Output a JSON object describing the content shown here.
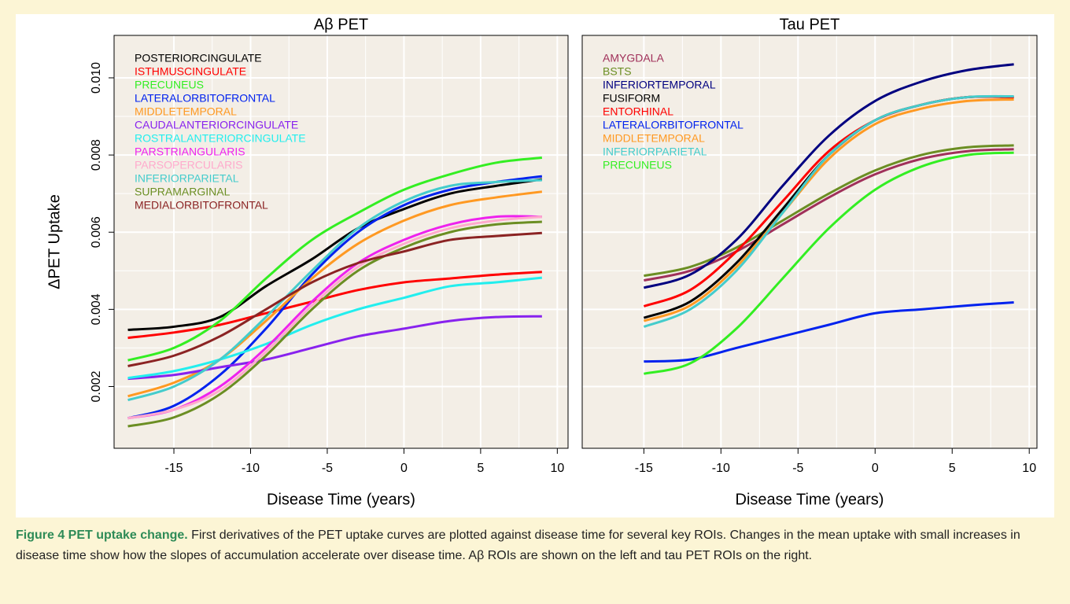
{
  "chart_data": [
    {
      "type": "line",
      "title": "Aβ PET",
      "xlabel": "Disease Time (years)",
      "ylabel": "ΔPET Uptake",
      "x": [
        -18,
        -15,
        -12,
        -9,
        -6,
        -3,
        0,
        3,
        6,
        9
      ],
      "xlim": [
        -18.9,
        10.7
      ],
      "xticks": [
        -15,
        -10,
        -5,
        0,
        5,
        10
      ],
      "ylim": [
        0.0004,
        0.0111
      ],
      "yticks": [
        0.002,
        0.004,
        0.006,
        0.008,
        {
          "value": 0.01,
          "label": "0.010"
        }
      ],
      "show_ytick_labels": true,
      "grid": true,
      "legend": "top-left",
      "series": [
        {
          "name": "POSTERIORCINGULATE",
          "color": "#000000",
          "values": [
            0.00347,
            0.00355,
            0.0038,
            0.0046,
            0.0053,
            0.0061,
            0.0066,
            0.007,
            0.0072,
            0.00737
          ]
        },
        {
          "name": "ISTHMUSCINGULATE",
          "color": "#ff0000",
          "values": [
            0.00326,
            0.0034,
            0.0036,
            0.0039,
            0.0042,
            0.0045,
            0.0047,
            0.0048,
            0.0049,
            0.00497
          ]
        },
        {
          "name": "PRECUNEUS",
          "color": "#33ee22",
          "values": [
            0.00268,
            0.003,
            0.0037,
            0.0048,
            0.0058,
            0.0065,
            0.0071,
            0.0075,
            0.0078,
            0.00793
          ]
        },
        {
          "name": "LATERALORBITOFRONTAL",
          "color": "#0022ee",
          "values": [
            0.00118,
            0.0015,
            0.0023,
            0.0035,
            0.0049,
            0.006,
            0.0067,
            0.0071,
            0.0073,
            0.00745
          ]
        },
        {
          "name": "MIDDLETEMPORAL",
          "color": "#ff9922",
          "values": [
            0.00175,
            0.0021,
            0.0027,
            0.0037,
            0.0048,
            0.0057,
            0.0063,
            0.0067,
            0.0069,
            0.00705
          ]
        },
        {
          "name": "CAUDALANTERIORCINGULATE",
          "color": "#8822ee",
          "values": [
            0.0022,
            0.0023,
            0.0025,
            0.0027,
            0.003,
            0.0033,
            0.0035,
            0.0037,
            0.0038,
            0.00382
          ]
        },
        {
          "name": "ROSTRALANTERIORCINGULATE",
          "color": "#22eeee",
          "values": [
            0.00222,
            0.0024,
            0.0027,
            0.0031,
            0.0036,
            0.004,
            0.0043,
            0.0046,
            0.0047,
            0.00482
          ]
        },
        {
          "name": "PARSTRIANGULARIS",
          "color": "#ee22ee",
          "values": [
            0.00118,
            0.0014,
            0.002,
            0.003,
            0.0042,
            0.0052,
            0.0058,
            0.0062,
            0.0064,
            0.0064
          ]
        },
        {
          "name": "PARSOPERCULARIS",
          "color": "#ffaacc",
          "values": [
            0.00118,
            0.0014,
            0.0019,
            0.0029,
            0.0041,
            0.0051,
            0.0057,
            0.0061,
            0.0063,
            0.0064
          ]
        },
        {
          "name": "INFERIORPARIETAL",
          "color": "#44cccc",
          "values": [
            0.00165,
            0.002,
            0.0027,
            0.0038,
            0.005,
            0.0061,
            0.0068,
            0.0072,
            0.0073,
            0.00735
          ]
        },
        {
          "name": "SUPRAMARGINAL",
          "color": "#6b8e23",
          "values": [
            0.00097,
            0.0012,
            0.0018,
            0.0028,
            0.004,
            0.005,
            0.0056,
            0.006,
            0.0062,
            0.00627
          ]
        },
        {
          "name": "MEDIALORBITOFRONTAL",
          "color": "#8b2323",
          "values": [
            0.00253,
            0.0028,
            0.0033,
            0.004,
            0.0047,
            0.0052,
            0.0055,
            0.0058,
            0.0059,
            0.00598
          ]
        }
      ]
    },
    {
      "type": "line",
      "title": "Tau PET",
      "xlabel": "Disease Time (years)",
      "x": [
        -15,
        -12,
        -9,
        -6,
        -3,
        0,
        3,
        6,
        9
      ],
      "xlim": [
        -19.0,
        10.5
      ],
      "xticks": [
        -15,
        -10,
        -5,
        0,
        5,
        10
      ],
      "ylim": [
        0.0004,
        0.0111
      ],
      "yticks": [
        0.002,
        0.004,
        0.006,
        0.008,
        0.01
      ],
      "show_ytick_labels": false,
      "grid": true,
      "legend": "top-left",
      "series": [
        {
          "name": "AMYGDALA",
          "color": "#a0305a",
          "values": [
            0.00475,
            0.005,
            0.0055,
            0.0062,
            0.0069,
            0.0075,
            0.0079,
            0.0081,
            0.00815
          ]
        },
        {
          "name": "BSTS",
          "color": "#6b8e23",
          "values": [
            0.00487,
            0.0051,
            0.0056,
            0.0063,
            0.007,
            0.0076,
            0.008,
            0.0082,
            0.00825
          ]
        },
        {
          "name": "INFERIORTEMPORAL",
          "color": "#000080",
          "values": [
            0.00456,
            0.0049,
            0.0058,
            0.0072,
            0.0085,
            0.0094,
            0.0099,
            0.0102,
            0.01035
          ]
        },
        {
          "name": "FUSIFORM",
          "color": "#000000",
          "values": [
            0.00378,
            0.0042,
            0.0052,
            0.0066,
            0.008,
            0.0089,
            0.0093,
            0.0095,
            0.0095
          ]
        },
        {
          "name": "ENTORHINAL",
          "color": "#ff0000",
          "values": [
            0.00408,
            0.0045,
            0.0055,
            0.0068,
            0.0081,
            0.0089,
            0.0093,
            0.0095,
            0.0095
          ]
        },
        {
          "name": "LATERALORBITOFRONTAL",
          "color": "#0022ee",
          "values": [
            0.00265,
            0.0027,
            0.003,
            0.0033,
            0.0036,
            0.0039,
            0.004,
            0.0041,
            0.00418
          ]
        },
        {
          "name": "MIDDLETEMPORAL",
          "color": "#ff9922",
          "values": [
            0.0037,
            0.0041,
            0.0051,
            0.0065,
            0.0079,
            0.0088,
            0.0092,
            0.0094,
            0.00944
          ]
        },
        {
          "name": "INFERIORPARIETAL",
          "color": "#44cccc",
          "values": [
            0.00355,
            0.004,
            0.005,
            0.0065,
            0.008,
            0.0089,
            0.0093,
            0.0095,
            0.00952
          ]
        },
        {
          "name": "PRECUNEUS",
          "color": "#33ee22",
          "values": [
            0.00233,
            0.0026,
            0.0035,
            0.0048,
            0.0061,
            0.0071,
            0.0077,
            0.008,
            0.00806
          ]
        }
      ]
    }
  ],
  "caption": {
    "label": "Figure 4 PET uptake change.",
    "text": "First derivatives of the PET uptake curves are plotted against disease time for several key ROIs. Changes in the mean uptake with small increases in disease time show how the slopes of accumulation accelerate over disease time. Aβ ROIs are shown on the left and tau PET ROIs on the right."
  }
}
